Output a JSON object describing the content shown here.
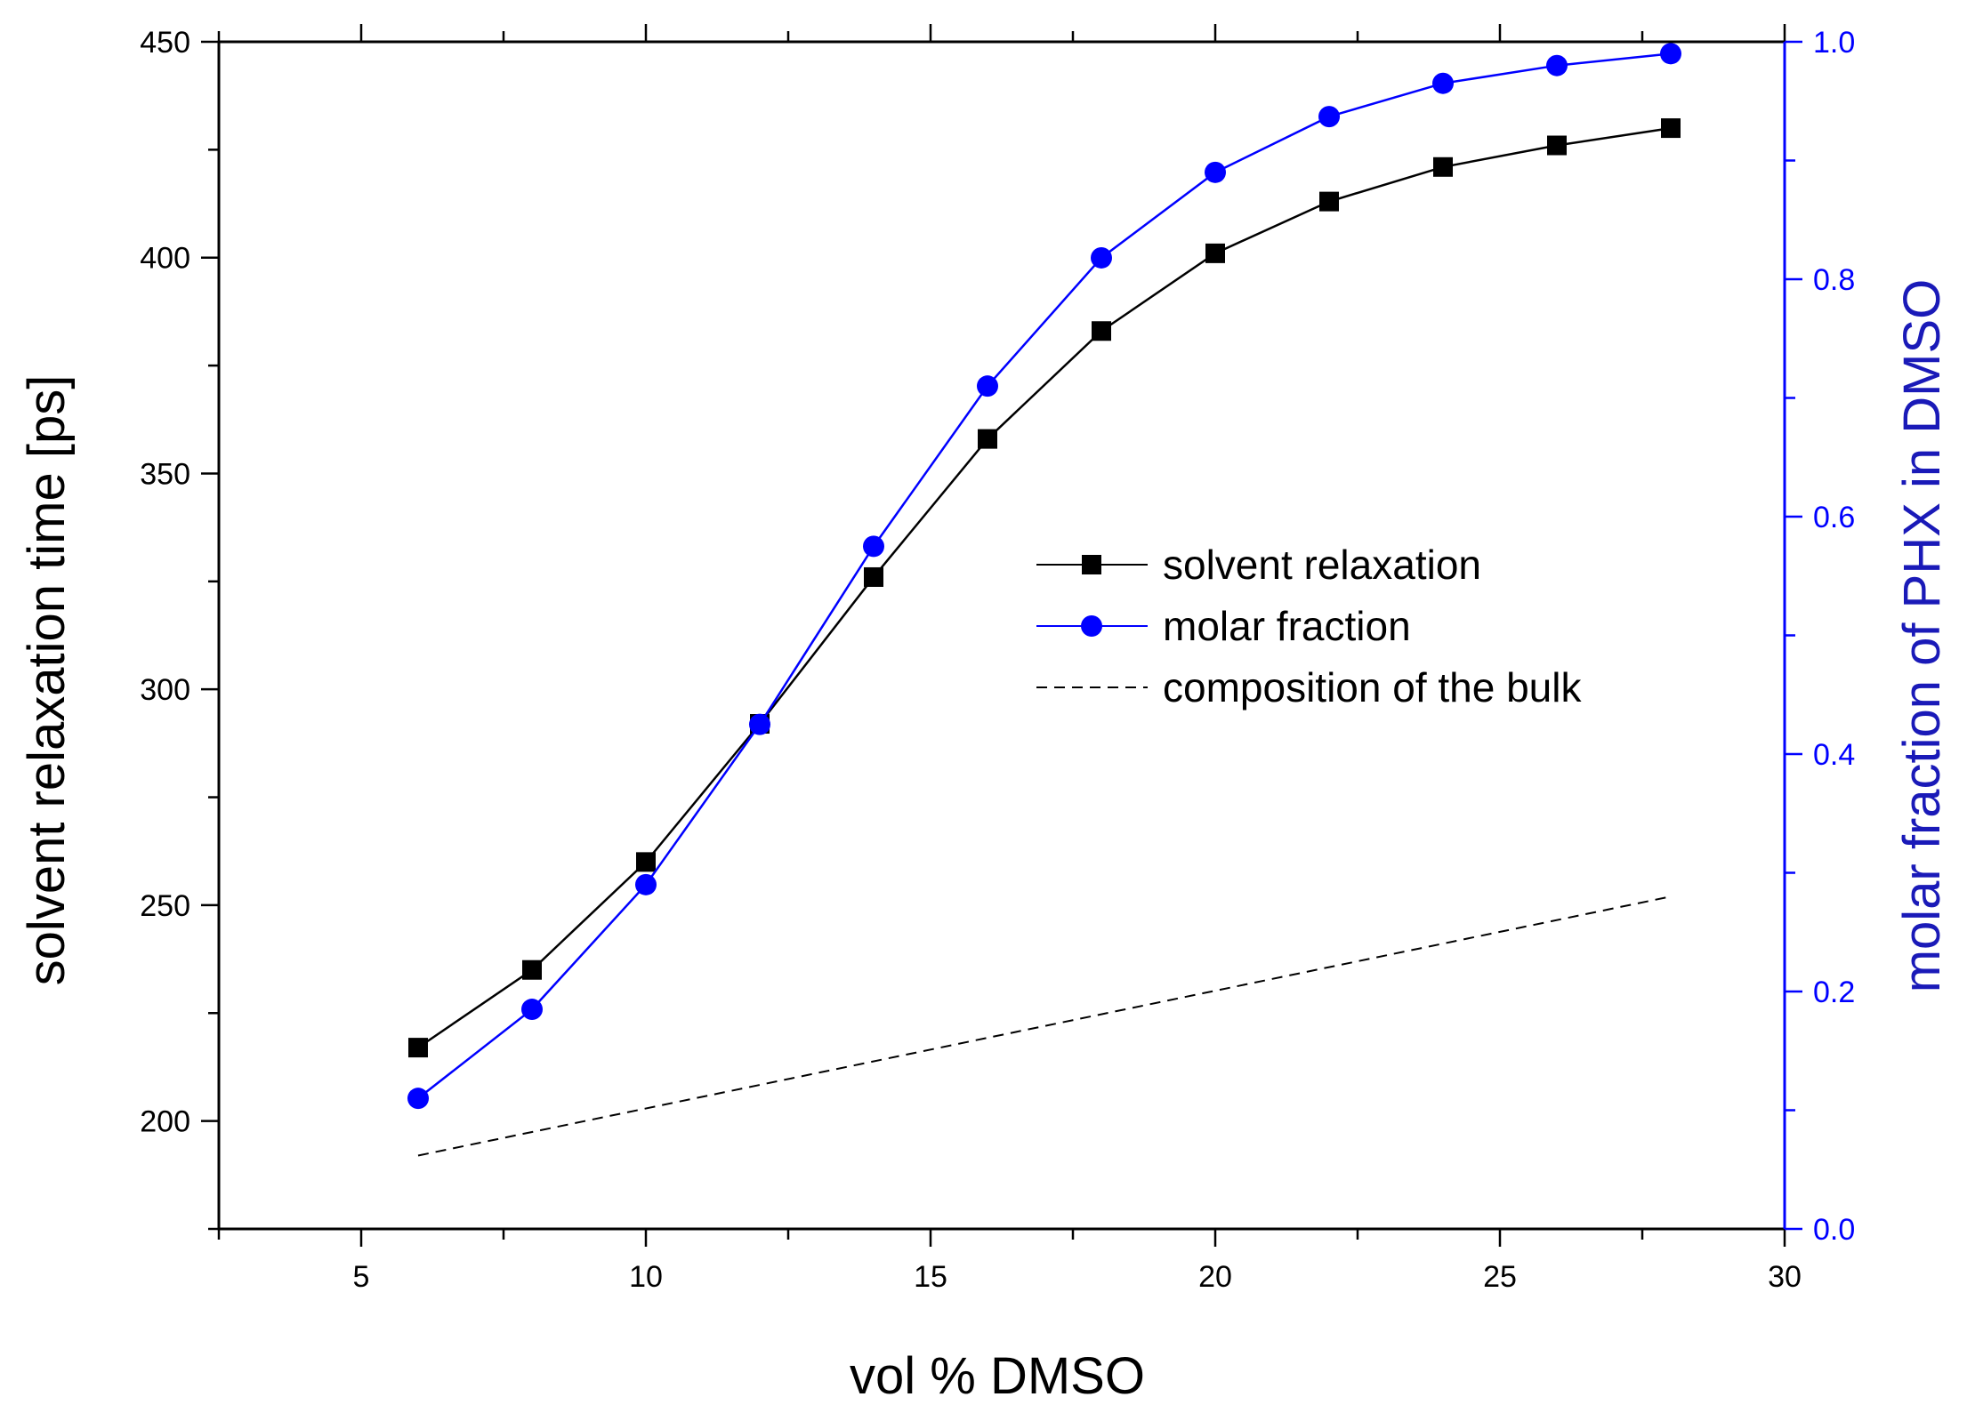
{
  "chart_data": {
    "type": "line",
    "title": "",
    "xlabel": "vol % DMSO",
    "ylabel_left": "solvent relaxation time [ps]",
    "ylabel_right": "molar fraction of PHX in DMSO",
    "xlim": [
      2.5,
      30
    ],
    "ylim_left": [
      175,
      450
    ],
    "ylim_right": [
      0.0,
      1.0
    ],
    "x_ticks": [
      5,
      10,
      15,
      20,
      25,
      30
    ],
    "y_ticks_left": [
      200,
      250,
      300,
      350,
      400,
      450
    ],
    "y_ticks_right": [
      "0.0",
      "0.2",
      "0.4",
      "0.6",
      "0.8",
      "1.0"
    ],
    "grid": false,
    "legend_position": "center-right",
    "colors": {
      "left_axis": "#000000",
      "right_axis": "#0000ff",
      "right_title": "#1a1ab8"
    },
    "series": [
      {
        "name": "solvent relaxation",
        "axis": "left",
        "marker": "square",
        "color": "#000000",
        "x": [
          6,
          8,
          10,
          12,
          14,
          16,
          18,
          20,
          22,
          24,
          26,
          28
        ],
        "y": [
          217,
          235,
          260,
          292,
          326,
          358,
          383,
          401,
          413,
          421,
          426,
          430
        ]
      },
      {
        "name": "molar fraction",
        "axis": "right",
        "marker": "circle",
        "color": "#0000ff",
        "x": [
          6,
          8,
          10,
          12,
          14,
          16,
          18,
          20,
          22,
          24,
          26,
          28
        ],
        "y": [
          0.11,
          0.185,
          0.29,
          0.425,
          0.575,
          0.71,
          0.818,
          0.89,
          0.937,
          0.965,
          0.98,
          0.99
        ]
      },
      {
        "name": "composition of the bulk",
        "axis": "left",
        "style": "dashed",
        "color": "#000000",
        "x": [
          6,
          28
        ],
        "y": [
          192,
          252
        ]
      }
    ]
  }
}
